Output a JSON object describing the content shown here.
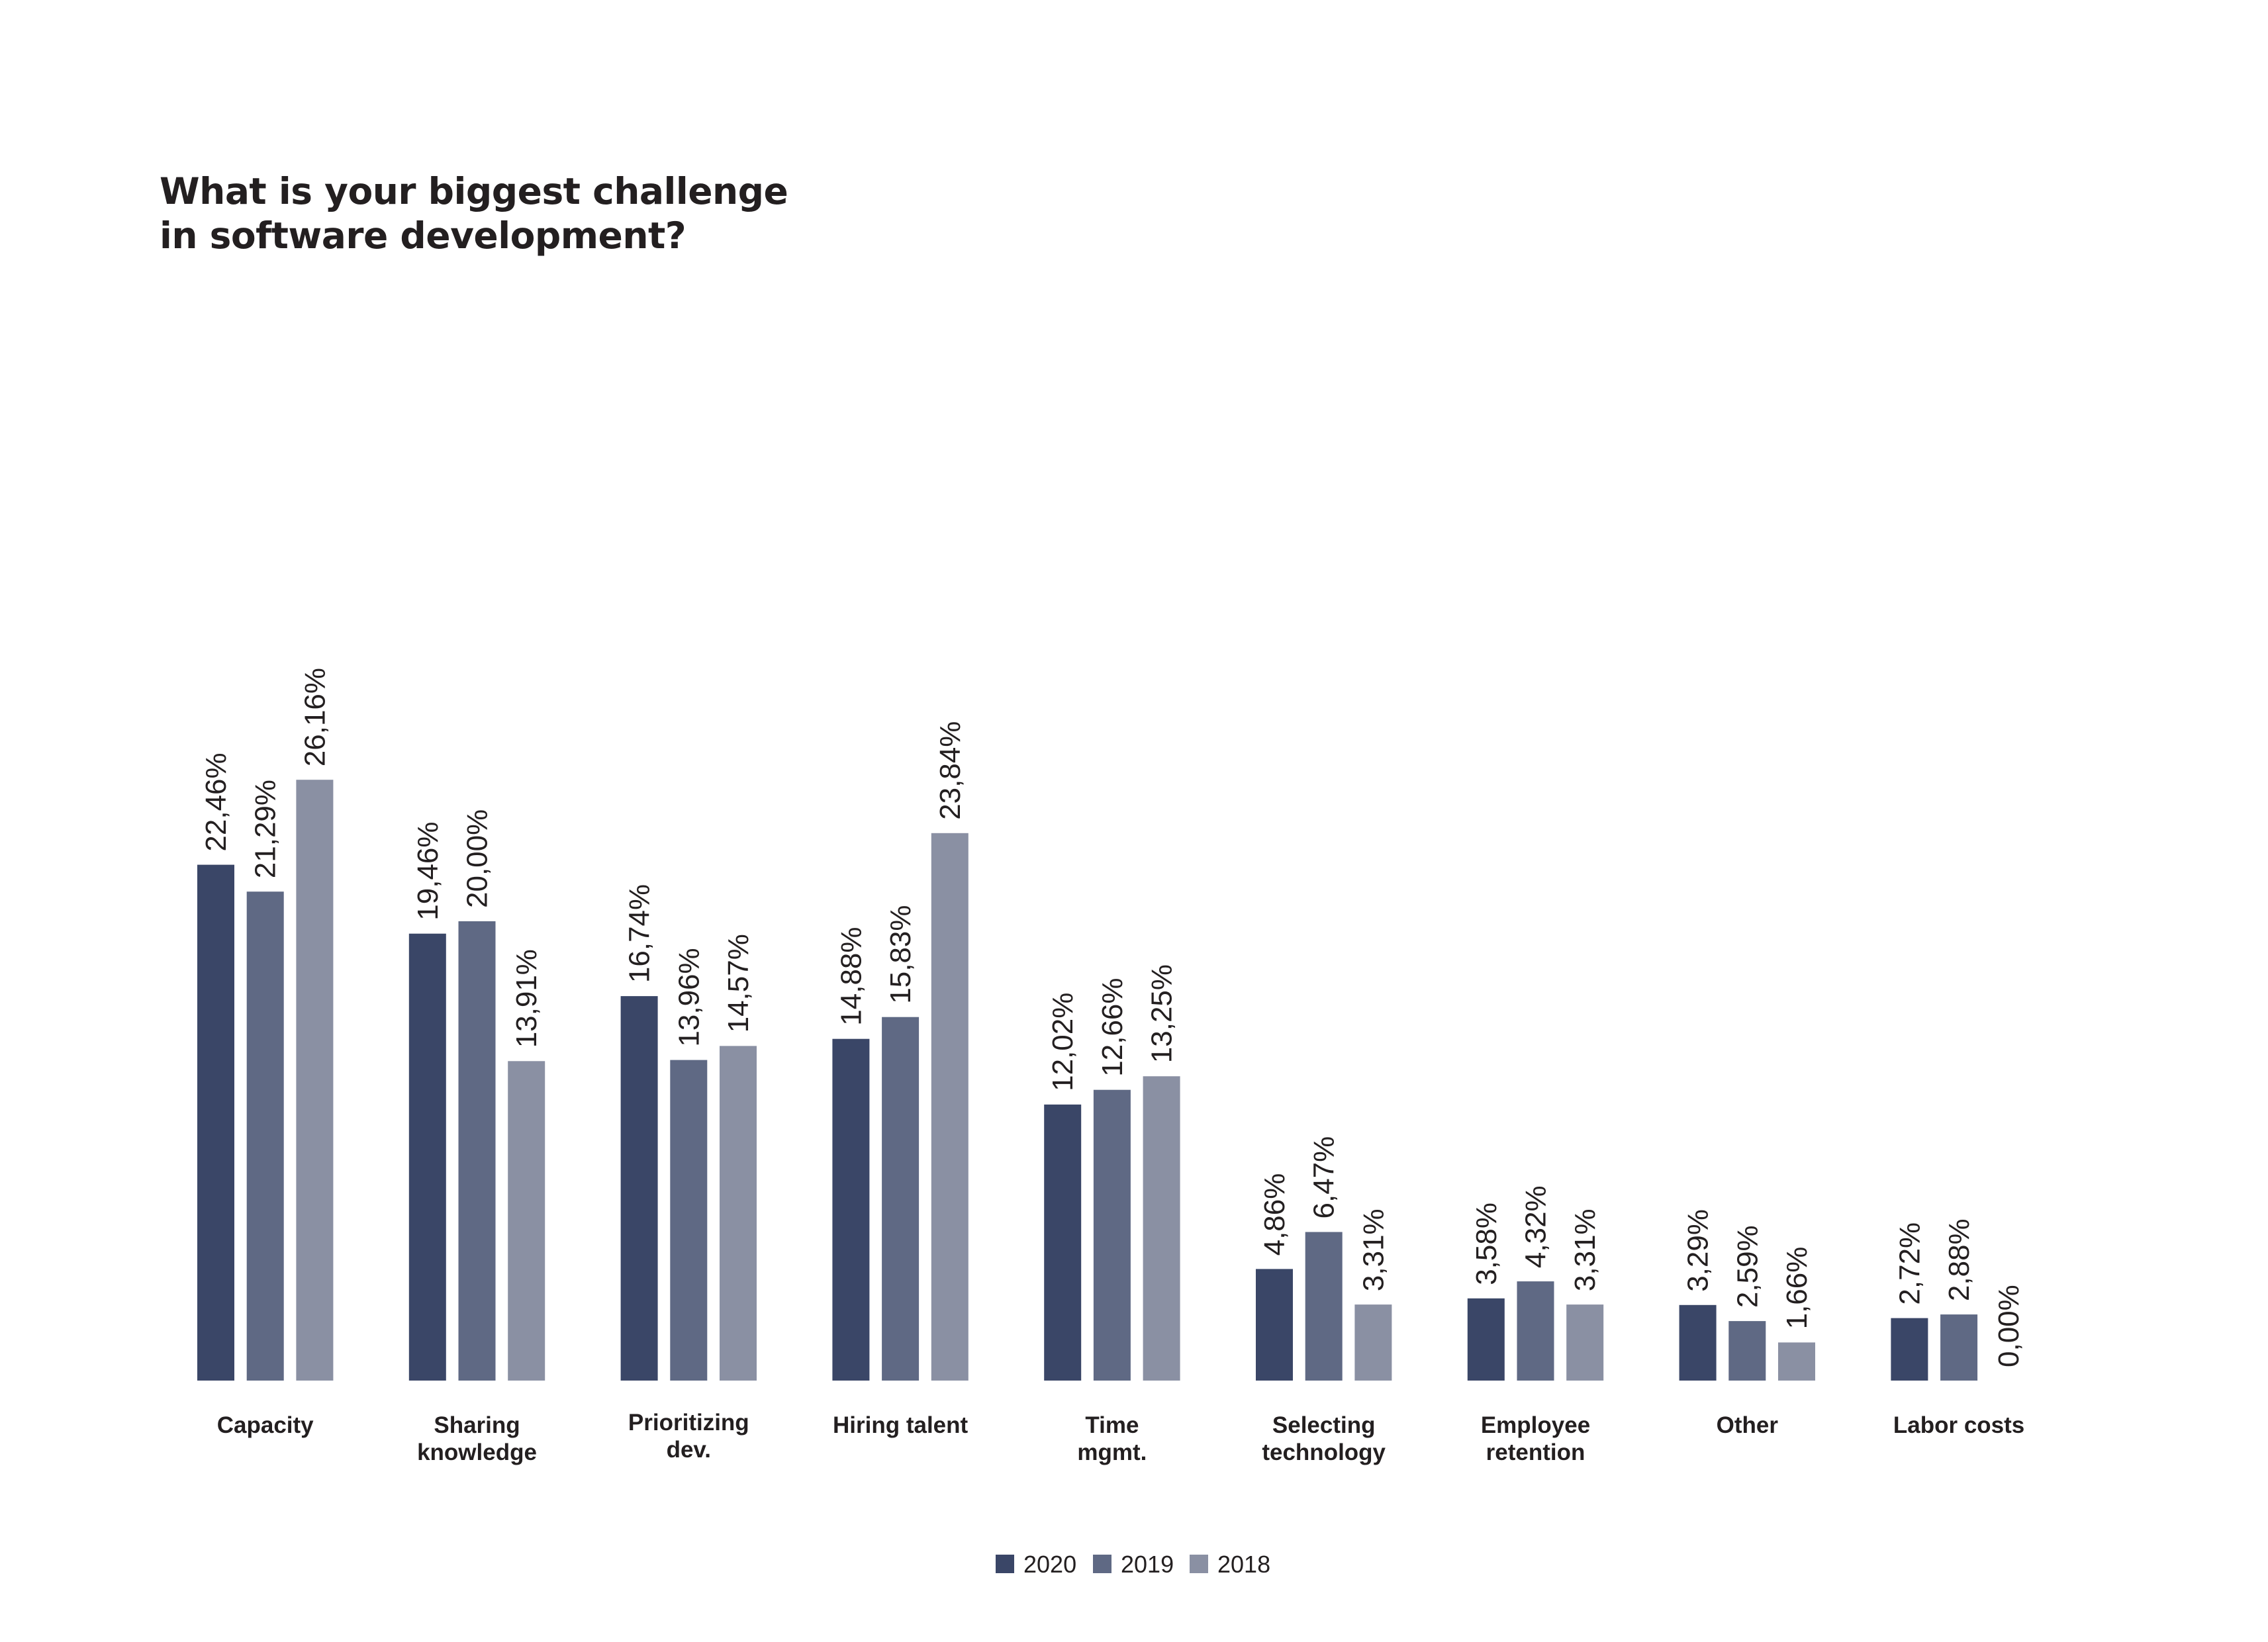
{
  "chart_data": {
    "type": "bar",
    "title": [
      "What is your biggest challenge",
      "in software development?"
    ],
    "xlabel": "",
    "ylabel": "",
    "ylim": [
      0,
      30
    ],
    "grid": false,
    "legend_position": "bottom-center",
    "categories": [
      [
        "Capacity"
      ],
      [
        "Sharing",
        "knowledge"
      ],
      [
        "Prioritizing",
        "dev."
      ],
      [
        "Hiring talent"
      ],
      [
        "Time",
        "mgmt."
      ],
      [
        "Selecting",
        "technology"
      ],
      [
        "Employee",
        "retention"
      ],
      [
        "Other"
      ],
      [
        "Labor costs"
      ]
    ],
    "series": [
      {
        "name": "2020",
        "color": "#3a4667",
        "values": [
          22.46,
          19.46,
          16.74,
          14.88,
          12.02,
          4.86,
          3.58,
          3.29,
          2.72
        ],
        "labels": [
          "22,46%",
          "19,46%",
          "16,74%",
          "14,88%",
          "12,02%",
          "4,86%",
          "3,58%",
          "3,29%",
          "2,72%"
        ]
      },
      {
        "name": "2019",
        "color": "#5f6984",
        "values": [
          21.29,
          20.0,
          13.96,
          15.83,
          12.66,
          6.47,
          4.32,
          2.59,
          2.88
        ],
        "labels": [
          "21,29%",
          "20,00%",
          "13,96%",
          "15,83%",
          "12,66%",
          "6,47%",
          "4,32%",
          "2,59%",
          "2,88%"
        ]
      },
      {
        "name": "2018",
        "color": "#8a90a3",
        "values": [
          26.16,
          13.91,
          14.57,
          23.84,
          13.25,
          3.31,
          3.31,
          1.66,
          0.0
        ],
        "labels": [
          "26,16%",
          "13,91%",
          "14,57%",
          "23,84%",
          "13,25%",
          "3,31%",
          "3,31%",
          "1,66%",
          "0,00%"
        ]
      }
    ]
  }
}
